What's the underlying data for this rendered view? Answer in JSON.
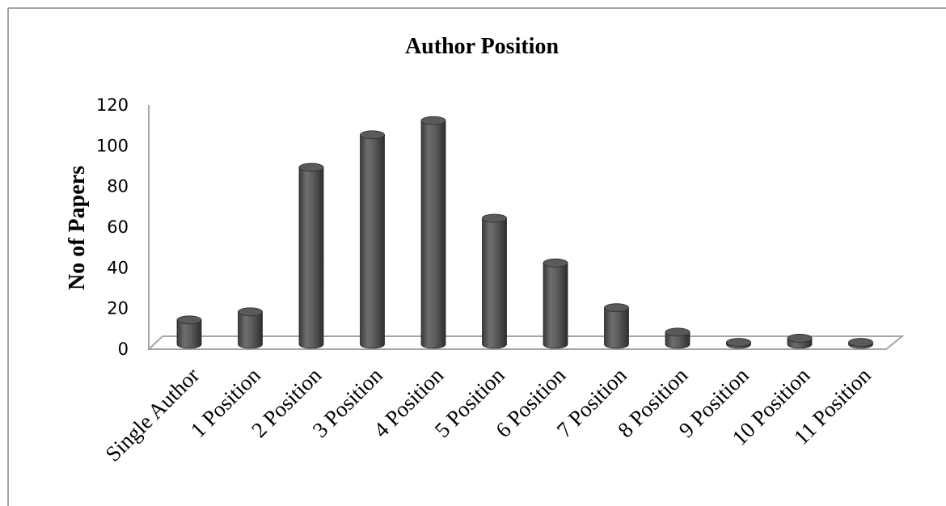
{
  "chart_data": {
    "type": "bar",
    "title": "Author Position",
    "xlabel": "",
    "ylabel": "No of Papers",
    "categories": [
      "Single Author",
      "1 Position",
      "2 Position",
      "3 Position",
      "4 Position",
      "5 Position",
      "6 Position",
      "7 Position",
      "8 Position",
      "9 Position",
      "10 Position",
      "11 Position"
    ],
    "values": [
      12,
      16,
      87,
      103,
      110,
      62,
      40,
      18,
      6,
      1,
      3,
      1
    ],
    "yticks": [
      "0",
      "20",
      "40",
      "60",
      "80",
      "100",
      "120"
    ],
    "ylim": [
      0,
      120
    ],
    "grid": false,
    "bar_style": "3d-cylinder",
    "colors": {
      "bar": "#5a5a5a",
      "axis": "#a6a6a6",
      "border": "#868686"
    }
  }
}
